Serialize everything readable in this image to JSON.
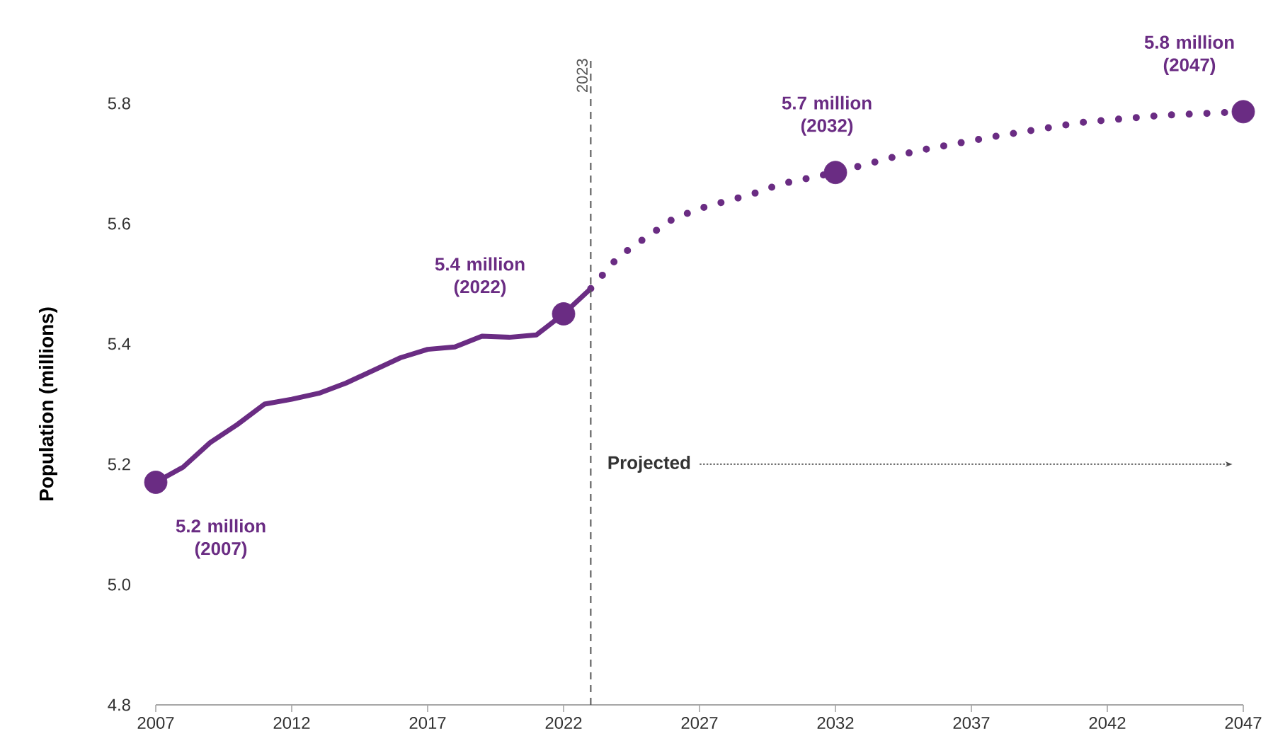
{
  "chart_data": {
    "type": "line",
    "ylabel": "Population (millions)",
    "series": [
      {
        "color": "#6a2c83",
        "line_style": "solid",
        "x": [
          2007,
          2008,
          2009,
          2010,
          2011,
          2012,
          2013,
          2014,
          2015,
          2016,
          2017,
          2018,
          2019,
          2020,
          2021,
          2022,
          2023
        ],
        "values": [
          5.17,
          5.195,
          5.236,
          5.266,
          5.3,
          5.308,
          5.318,
          5.335,
          5.356,
          5.377,
          5.391,
          5.395,
          5.413,
          5.411,
          5.415,
          5.45,
          5.492
        ]
      },
      {
        "color": "#6a2c83",
        "line_style": "dotted",
        "x": [
          2023,
          2024,
          2025,
          2026,
          2027,
          2029,
          2030,
          2032,
          2035,
          2038,
          2041,
          2044,
          2047
        ],
        "values": [
          5.492,
          5.544,
          5.576,
          5.607,
          5.625,
          5.65,
          5.666,
          5.685,
          5.721,
          5.746,
          5.768,
          5.78,
          5.786
        ]
      },
      {
        "type": "scatter",
        "color": "#6a2c83",
        "marker": "circle",
        "x": [
          2007,
          2022,
          2032,
          2047
        ],
        "values": [
          5.17,
          5.45,
          5.685,
          5.786
        ]
      }
    ],
    "xlim": [
      2007,
      2047
    ],
    "xticks": [
      2007,
      2012,
      2017,
      2022,
      2027,
      2032,
      2037,
      2042,
      2047
    ],
    "ylim": [
      4.8,
      5.8
    ],
    "yticks": [
      {
        "value": 4.8,
        "label": "4.8"
      },
      {
        "value": 5.0,
        "label": "5.0"
      },
      {
        "value": 5.2,
        "label": "5.2"
      },
      {
        "value": 5.4,
        "label": "5.4"
      },
      {
        "value": 5.6,
        "label": "5.6"
      },
      {
        "value": 5.8,
        "label": "5.8"
      }
    ],
    "ref_lines": [
      {
        "axis": "x",
        "value": 2023,
        "label": "2023",
        "line_style": "dashed",
        "color": "#555555"
      }
    ],
    "annotations": [
      {
        "text": "5.2 million (2007)",
        "x": 2007,
        "y": 5.17
      },
      {
        "text": "5.4 million (2022)",
        "x": 2022,
        "y": 5.45
      },
      {
        "text": "5.7 million (2032)",
        "x": 2032,
        "y": 5.685
      },
      {
        "text": "5.8 million (2047)",
        "x": 2047,
        "y": 5.786
      },
      "Projected"
    ],
    "grid": false
  }
}
